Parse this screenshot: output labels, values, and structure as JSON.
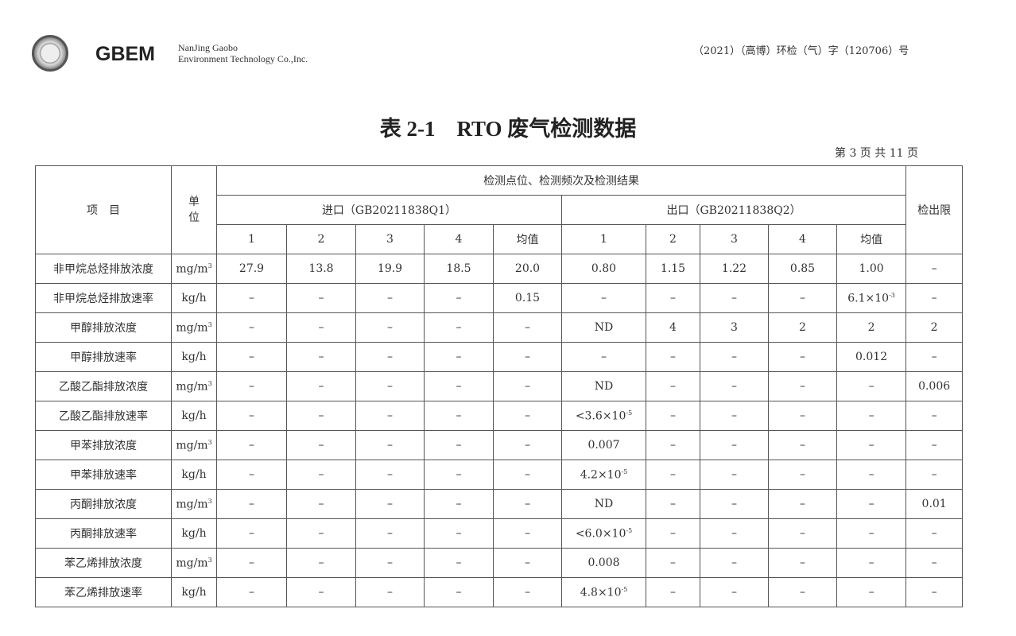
{
  "header": {
    "brand": "GBEM",
    "company_line1": "NanJing Gaobo",
    "company_line2": "Environment Technology Co.,Inc.",
    "doc_number": "（2021）（高博）环检（气）字（120706）号"
  },
  "title": "表 2-1　RTO 废气检测数据",
  "page_info": "第 3 页 共 11 页",
  "table": {
    "col_item": "项　目",
    "col_unit": "单位",
    "col_group": "检测点位、检测频次及检测结果",
    "col_limit": "检出限",
    "inlet": "进口（GB20211838Q1）",
    "outlet": "出口（GB20211838Q2）",
    "sub_headers": [
      "1",
      "2",
      "3",
      "4",
      "均值",
      "1",
      "2",
      "3",
      "4",
      "均值"
    ],
    "rows": [
      [
        "非甲烷总烃排放浓度",
        "mg/m^3",
        "27.9",
        "13.8",
        "19.9",
        "18.5",
        "20.0",
        "0.80",
        "1.15",
        "1.22",
        "0.85",
        "1.00",
        "-"
      ],
      [
        "非甲烷总烃排放速率",
        "kg/h",
        "-",
        "-",
        "-",
        "-",
        "0.15",
        "-",
        "-",
        "-",
        "-",
        "6.1×10^-3",
        "-"
      ],
      [
        "甲醇排放浓度",
        "mg/m^3",
        "-",
        "-",
        "-",
        "-",
        "-",
        "ND",
        "4",
        "3",
        "2",
        "2",
        "2"
      ],
      [
        "甲醇排放速率",
        "kg/h",
        "-",
        "-",
        "-",
        "-",
        "-",
        "-",
        "-",
        "-",
        "-",
        "0.012",
        "-"
      ],
      [
        "乙酸乙酯排放浓度",
        "mg/m^3",
        "-",
        "-",
        "-",
        "-",
        "-",
        "ND",
        "-",
        "-",
        "-",
        "-",
        "0.006"
      ],
      [
        "乙酸乙酯排放速率",
        "kg/h",
        "-",
        "-",
        "-",
        "-",
        "-",
        "<3.6×10^-5",
        "-",
        "-",
        "-",
        "-",
        "-"
      ],
      [
        "甲苯排放浓度",
        "mg/m^3",
        "-",
        "-",
        "-",
        "-",
        "-",
        "0.007",
        "-",
        "-",
        "-",
        "-",
        "-"
      ],
      [
        "甲苯排放速率",
        "kg/h",
        "-",
        "-",
        "-",
        "-",
        "-",
        "4.2×10^-5",
        "-",
        "-",
        "-",
        "-",
        "-"
      ],
      [
        "丙酮排放浓度",
        "mg/m^3",
        "-",
        "-",
        "-",
        "-",
        "-",
        "ND",
        "-",
        "-",
        "-",
        "-",
        "0.01"
      ],
      [
        "丙酮排放速率",
        "kg/h",
        "-",
        "-",
        "-",
        "-",
        "-",
        "<6.0×10^-5",
        "-",
        "-",
        "-",
        "-",
        "-"
      ],
      [
        "苯乙烯排放浓度",
        "mg/m^3",
        "-",
        "-",
        "-",
        "-",
        "-",
        "0.008",
        "-",
        "-",
        "-",
        "-",
        "-"
      ],
      [
        "苯乙烯排放速率",
        "kg/h",
        "-",
        "-",
        "-",
        "-",
        "-",
        "4.8×10^-5",
        "-",
        "-",
        "-",
        "-",
        "-"
      ]
    ]
  }
}
